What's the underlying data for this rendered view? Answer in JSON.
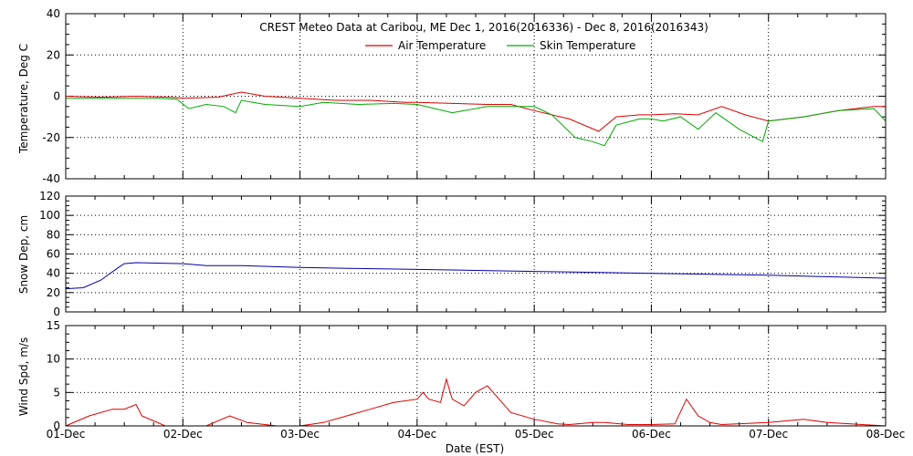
{
  "title": "CREST Meteo Data at Caribou, ME   Dec  1, 2016(2016336) - Dec  8, 2016(2016343)",
  "xlabel": "Date (EST)",
  "colors": {
    "air": "#dd0000",
    "skin": "#00aa00",
    "snow": "#0000aa",
    "wind": "#dd0000"
  },
  "chart_data": [
    {
      "type": "line",
      "ylabel": "Temperature, Deg C",
      "ylim": [
        -40,
        40
      ],
      "yticks": [
        "40",
        "20",
        "0",
        "-20",
        "-40"
      ],
      "yticks_values": [
        40,
        20,
        0,
        -20,
        -40
      ],
      "xlim": [
        0,
        7
      ],
      "x_unit": "days since 01-Dec",
      "grid": true,
      "legend_placement": "top-center",
      "series": [
        {
          "name": "Air Temperature",
          "x": [
            0,
            0.3,
            0.6,
            0.9,
            1.0,
            1.3,
            1.5,
            1.7,
            2.0,
            2.3,
            2.6,
            2.9,
            3.0,
            3.3,
            3.6,
            3.8,
            4.0,
            4.3,
            4.55,
            4.7,
            4.9,
            5.0,
            5.2,
            5.4,
            5.6,
            5.8,
            6.0,
            6.3,
            6.6,
            6.9,
            7.0
          ],
          "values": [
            0,
            -0.5,
            0,
            -0.5,
            -1,
            -0.5,
            2,
            0,
            -1,
            -2,
            -2,
            -3,
            -3,
            -3.5,
            -4,
            -4,
            -7,
            -11,
            -17,
            -10,
            -9,
            -9,
            -8.5,
            -9,
            -5,
            -9,
            -12,
            -10,
            -7,
            -5,
            -5
          ]
        },
        {
          "name": "Skin Temperature",
          "x": [
            0,
            0.4,
            0.8,
            0.95,
            1.05,
            1.2,
            1.35,
            1.45,
            1.5,
            1.7,
            2.0,
            2.2,
            2.5,
            2.8,
            3.0,
            3.3,
            3.6,
            3.75,
            4.0,
            4.15,
            4.35,
            4.5,
            4.6,
            4.7,
            4.9,
            5.0,
            5.1,
            5.25,
            5.4,
            5.55,
            5.75,
            5.95,
            6.0,
            6.3,
            6.6,
            6.9,
            7.0
          ],
          "values": [
            -1,
            -1,
            -1,
            -1.5,
            -6,
            -4,
            -5,
            -8,
            -2,
            -4,
            -5,
            -3,
            -4,
            -3.5,
            -4,
            -8,
            -5,
            -5,
            -5,
            -9,
            -20,
            -22,
            -24,
            -14,
            -11,
            -11,
            -12,
            -10,
            -16,
            -8,
            -16,
            -22,
            -12,
            -10,
            -7,
            -6,
            -12
          ]
        }
      ]
    },
    {
      "type": "line",
      "ylabel": "Snow Dep, cm",
      "ylim": [
        0,
        120
      ],
      "yticks": [
        "120",
        "100",
        "80",
        "60",
        "40",
        "20",
        "0"
      ],
      "yticks_values": [
        120,
        100,
        80,
        60,
        40,
        20,
        0
      ],
      "xlim": [
        0,
        7
      ],
      "x_unit": "days since 01-Dec",
      "grid": true,
      "series": [
        {
          "name": "Snow Depth",
          "x": [
            0,
            0.15,
            0.3,
            0.45,
            0.5,
            0.6,
            1.0,
            1.2,
            1.5,
            2.0,
            2.5,
            3.0,
            3.5,
            4.0,
            5.0,
            6.0,
            7.0
          ],
          "values": [
            24,
            25,
            33,
            46,
            50,
            51,
            50,
            48,
            48,
            46,
            45,
            44,
            43,
            42,
            40,
            38,
            35
          ]
        }
      ]
    },
    {
      "type": "line",
      "ylabel": "Wind Spd, m/s",
      "ylim": [
        0,
        15
      ],
      "yticks": [
        "15",
        "10",
        "5",
        "0"
      ],
      "yticks_values": [
        15,
        10,
        5,
        0
      ],
      "xlim": [
        0,
        7
      ],
      "x_unit": "days since 01-Dec",
      "grid": true,
      "series": [
        {
          "name": "Wind Speed",
          "x": [
            0,
            0.2,
            0.4,
            0.5,
            0.6,
            0.65,
            0.85,
            1.2,
            1.4,
            1.55,
            1.8,
            2.0,
            2.2,
            2.4,
            2.6,
            2.8,
            3.0,
            3.05,
            3.1,
            3.2,
            3.25,
            3.3,
            3.4,
            3.5,
            3.6,
            3.7,
            3.8,
            4.0,
            4.2,
            4.3,
            4.5,
            4.6,
            4.8,
            5.0,
            5.2,
            5.3,
            5.4,
            5.5,
            5.6,
            6.0,
            6.3,
            6.5,
            6.7,
            6.8,
            7.0
          ],
          "values": [
            0,
            1.5,
            2.5,
            2.5,
            3.2,
            1.5,
            0,
            0,
            1.5,
            0.5,
            0,
            0,
            0.5,
            1.5,
            2.5,
            3.5,
            4,
            5,
            4,
            3.5,
            7,
            4,
            3,
            5,
            6,
            4,
            2,
            1,
            0.3,
            0.2,
            0.5,
            0.5,
            0.2,
            0.2,
            0.3,
            4,
            1.5,
            0.5,
            0.2,
            0.5,
            1,
            0.5,
            0.3,
            0.2,
            0
          ]
        }
      ]
    }
  ],
  "xticks": [
    "01-Dec",
    "02-Dec",
    "03-Dec",
    "04-Dec",
    "05-Dec",
    "06-Dec",
    "07-Dec",
    "08-Dec"
  ]
}
